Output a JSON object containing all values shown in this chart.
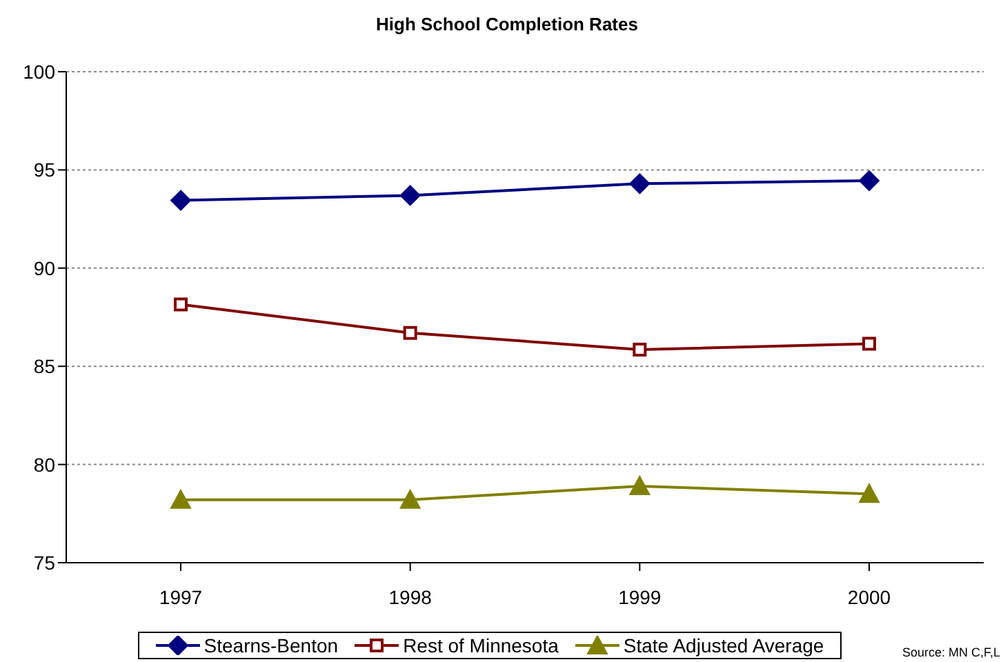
{
  "chart_data": {
    "type": "line",
    "title": "High School Completion Rates",
    "categories": [
      "1997",
      "1998",
      "1999",
      "2000"
    ],
    "series": [
      {
        "name": "Stearns-Benton",
        "color": "#000080",
        "marker": "diamond",
        "values": [
          93.45,
          93.7,
          94.3,
          94.45
        ]
      },
      {
        "name": "Rest of Minnesota",
        "color": "#800000",
        "marker": "square",
        "values": [
          88.15,
          86.7,
          85.85,
          86.15
        ]
      },
      {
        "name": "State Adjusted Average",
        "color": "#808000",
        "marker": "triangle",
        "values": [
          78.2,
          78.2,
          78.9,
          78.5
        ]
      }
    ],
    "ylim": [
      75,
      100
    ],
    "yticks": [
      75,
      80,
      85,
      90,
      95,
      100
    ],
    "grid": "y",
    "legend": "bottom",
    "annotations": [
      "Source: MN C,F,L"
    ]
  }
}
